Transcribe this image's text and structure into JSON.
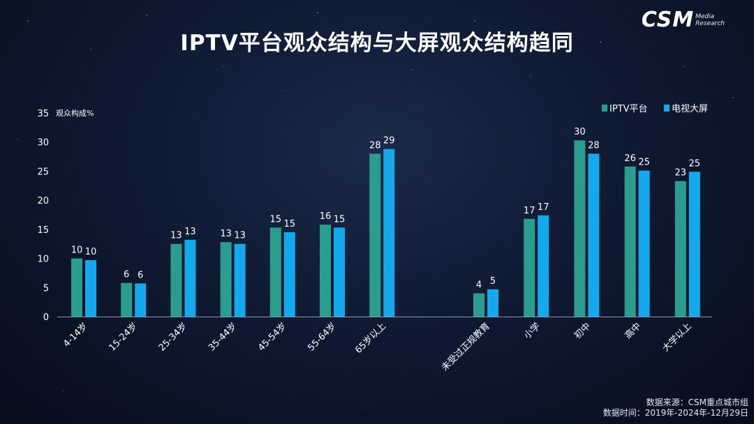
{
  "header": {
    "title": "IPTV平台观众结构与大屏观众结构趋同",
    "logo_text": "CSM",
    "logo_sub_line1": "Media",
    "logo_sub_line2": "Research"
  },
  "footer": {
    "source": "数据来源：CSM重点城市组",
    "period": "数据时间：2019年-2024年-12月29日"
  },
  "colors": {
    "iptv": "#2a9d8f",
    "tv": "#14a9ec",
    "background": "#0f1a33"
  },
  "chart_data": {
    "type": "bar",
    "ylabel": "观众构成%",
    "ylim": [
      0,
      35
    ],
    "yticks": [
      0,
      5,
      10,
      15,
      20,
      25,
      30,
      35
    ],
    "grid": false,
    "legend_position": "top-right",
    "groups": [
      {
        "categories": [
          "4-14岁",
          "15-24岁",
          "25-34岁",
          "35-44岁",
          "45-54岁",
          "55-64岁",
          "65岁以上"
        ]
      },
      {
        "categories": [
          "未受过正规教育",
          "小学",
          "初中",
          "高中",
          "大学以上"
        ]
      }
    ],
    "categories": [
      "4-14岁",
      "15-24岁",
      "25-34岁",
      "35-44岁",
      "45-54岁",
      "55-64岁",
      "65岁以上",
      "未受过正规教育",
      "小学",
      "初中",
      "高中",
      "大学以上"
    ],
    "series": [
      {
        "name": "IPTV平台",
        "color": "#2a9d8f",
        "values": [
          10.0,
          5.8,
          12.5,
          12.8,
          15.3,
          15.8,
          28.0,
          4.0,
          16.8,
          30.3,
          25.8,
          23.3
        ],
        "labels": [
          "10",
          "6",
          "13",
          "13",
          "15",
          "16",
          "28",
          "4",
          "17",
          "30",
          "26",
          "23"
        ]
      },
      {
        "name": "电视大屏",
        "color": "#14a9ec",
        "values": [
          9.7,
          5.7,
          13.2,
          12.5,
          14.5,
          15.3,
          28.8,
          4.7,
          17.4,
          28.0,
          25.1,
          24.9
        ],
        "labels": [
          "10",
          "6",
          "13",
          "13",
          "15",
          "15",
          "29",
          "5",
          "17",
          "28",
          "25",
          "25"
        ]
      }
    ]
  }
}
